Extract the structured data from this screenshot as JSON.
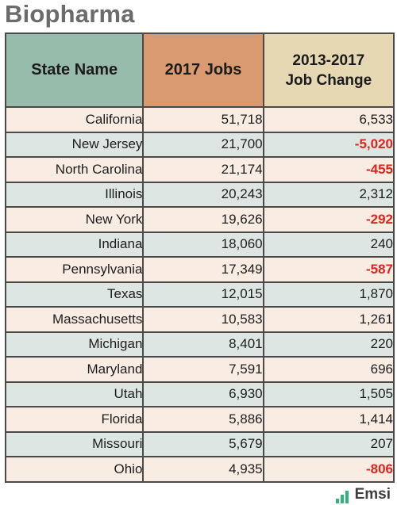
{
  "title": "Biopharma",
  "table": {
    "headers": {
      "state": "State Name",
      "jobs": "2017 Jobs",
      "change_line1": "2013-2017",
      "change_line2": "Job Change"
    },
    "rows": [
      {
        "state": "California",
        "jobs": "51,718",
        "change": "6,533",
        "negative": false
      },
      {
        "state": "New Jersey",
        "jobs": "21,700",
        "change": "-5,020",
        "negative": true
      },
      {
        "state": "North Carolina",
        "jobs": "21,174",
        "change": "-455",
        "negative": true
      },
      {
        "state": "Illinois",
        "jobs": "20,243",
        "change": "2,312",
        "negative": false
      },
      {
        "state": "New York",
        "jobs": "19,626",
        "change": "-292",
        "negative": true
      },
      {
        "state": "Indiana",
        "jobs": "18,060",
        "change": "240",
        "negative": false
      },
      {
        "state": "Pennsylvania",
        "jobs": "17,349",
        "change": "-587",
        "negative": true
      },
      {
        "state": "Texas",
        "jobs": "12,015",
        "change": "1,870",
        "negative": false
      },
      {
        "state": "Massachusetts",
        "jobs": "10,583",
        "change": "1,261",
        "negative": false
      },
      {
        "state": "Michigan",
        "jobs": "8,401",
        "change": "220",
        "negative": false
      },
      {
        "state": "Maryland",
        "jobs": "7,591",
        "change": "696",
        "negative": false
      },
      {
        "state": "Utah",
        "jobs": "6,930",
        "change": "1,505",
        "negative": false
      },
      {
        "state": "Florida",
        "jobs": "5,886",
        "change": "1,414",
        "negative": false
      },
      {
        "state": "Missouri",
        "jobs": "5,679",
        "change": "207",
        "negative": false
      },
      {
        "state": "Ohio",
        "jobs": "4,935",
        "change": "-806",
        "negative": true
      }
    ]
  },
  "logo": {
    "text": "Emsi",
    "icon": "bar-chart-icon",
    "color": "#2fb57a"
  },
  "colors": {
    "header_state": "#97bcab",
    "header_jobs": "#d99a6f",
    "header_change": "#e6d8b3",
    "row_odd": "#f9ece2",
    "row_even": "#dde6e2",
    "negative": "#e0231c"
  }
}
